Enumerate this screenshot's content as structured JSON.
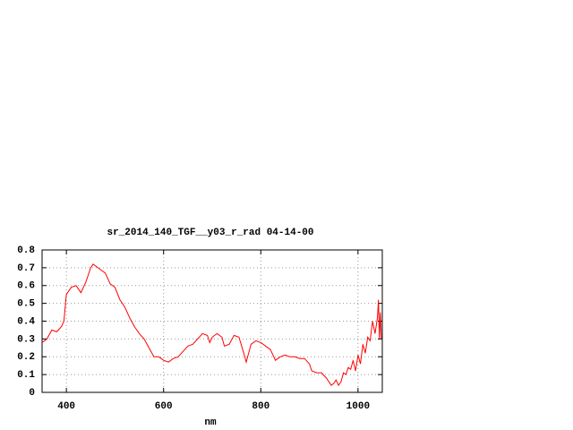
{
  "chart_data": {
    "type": "line",
    "title": "sr_2014_140_TGF__y03_r_rad 04-14-00",
    "x_label": "nm",
    "x": [
      350,
      360,
      370,
      380,
      390,
      395,
      400,
      410,
      420,
      430,
      440,
      450,
      455,
      470,
      480,
      490,
      500,
      510,
      520,
      530,
      540,
      550,
      560,
      570,
      580,
      590,
      600,
      610,
      620,
      630,
      640,
      650,
      660,
      670,
      680,
      690,
      695,
      700,
      710,
      720,
      725,
      735,
      745,
      755,
      765,
      770,
      780,
      790,
      800,
      810,
      820,
      830,
      840,
      850,
      860,
      870,
      880,
      890,
      900,
      905,
      915,
      925,
      935,
      945,
      950,
      955,
      960,
      965,
      970,
      975,
      980,
      985,
      990,
      995,
      1000,
      1005,
      1010,
      1015,
      1020,
      1025,
      1030,
      1035,
      1040,
      1042,
      1044,
      1046,
      1048
    ],
    "series": [
      {
        "name": "sr_2014_140_TGF__y03_r_rad",
        "color": "#ff0000",
        "values": [
          0.28,
          0.3,
          0.35,
          0.34,
          0.37,
          0.4,
          0.55,
          0.59,
          0.6,
          0.56,
          0.62,
          0.7,
          0.72,
          0.69,
          0.67,
          0.61,
          0.59,
          0.52,
          0.48,
          0.42,
          0.37,
          0.33,
          0.3,
          0.25,
          0.2,
          0.2,
          0.18,
          0.17,
          0.19,
          0.2,
          0.23,
          0.26,
          0.27,
          0.3,
          0.33,
          0.32,
          0.28,
          0.31,
          0.33,
          0.31,
          0.26,
          0.27,
          0.32,
          0.31,
          0.22,
          0.17,
          0.27,
          0.29,
          0.28,
          0.26,
          0.24,
          0.18,
          0.2,
          0.21,
          0.2,
          0.2,
          0.19,
          0.19,
          0.16,
          0.12,
          0.11,
          0.11,
          0.08,
          0.04,
          0.05,
          0.07,
          0.04,
          0.06,
          0.11,
          0.1,
          0.14,
          0.13,
          0.18,
          0.12,
          0.21,
          0.16,
          0.27,
          0.22,
          0.31,
          0.29,
          0.4,
          0.33,
          0.42,
          0.52,
          0.3,
          0.45,
          0.3
        ]
      }
    ],
    "xlim": [
      350,
      1050
    ],
    "ylim": [
      0,
      0.8
    ],
    "xticks": [
      400,
      600,
      800,
      1000
    ],
    "yticks": [
      0,
      0.1,
      0.2,
      0.3,
      0.4,
      0.5,
      0.6,
      0.7,
      0.8
    ],
    "grid": true
  }
}
